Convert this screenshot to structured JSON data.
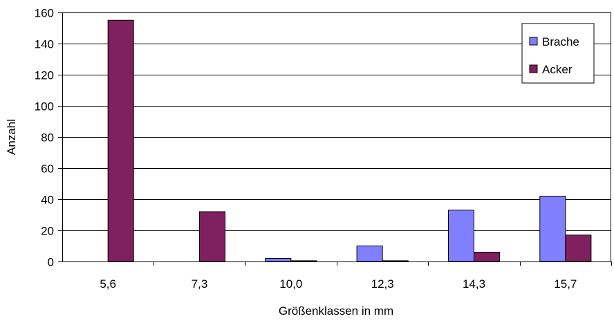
{
  "chart_data": {
    "type": "bar",
    "title": "",
    "xlabel": "Größenklassen in mm",
    "ylabel": "Anzahl",
    "categories": [
      "5,6",
      "7,3",
      "10,0",
      "12,3",
      "14,3",
      "15,7"
    ],
    "series": [
      {
        "name": "Brache",
        "values": [
          0,
          0,
          2,
          10,
          33,
          42
        ],
        "color": "#8080ff"
      },
      {
        "name": "Acker",
        "values": [
          155,
          32,
          0.5,
          0.5,
          6,
          17
        ],
        "color": "#802060"
      }
    ],
    "ylim": [
      0,
      160
    ],
    "yticks": [
      0,
      20,
      40,
      60,
      80,
      100,
      120,
      140,
      160
    ],
    "grid": true,
    "legend": "top-right"
  }
}
